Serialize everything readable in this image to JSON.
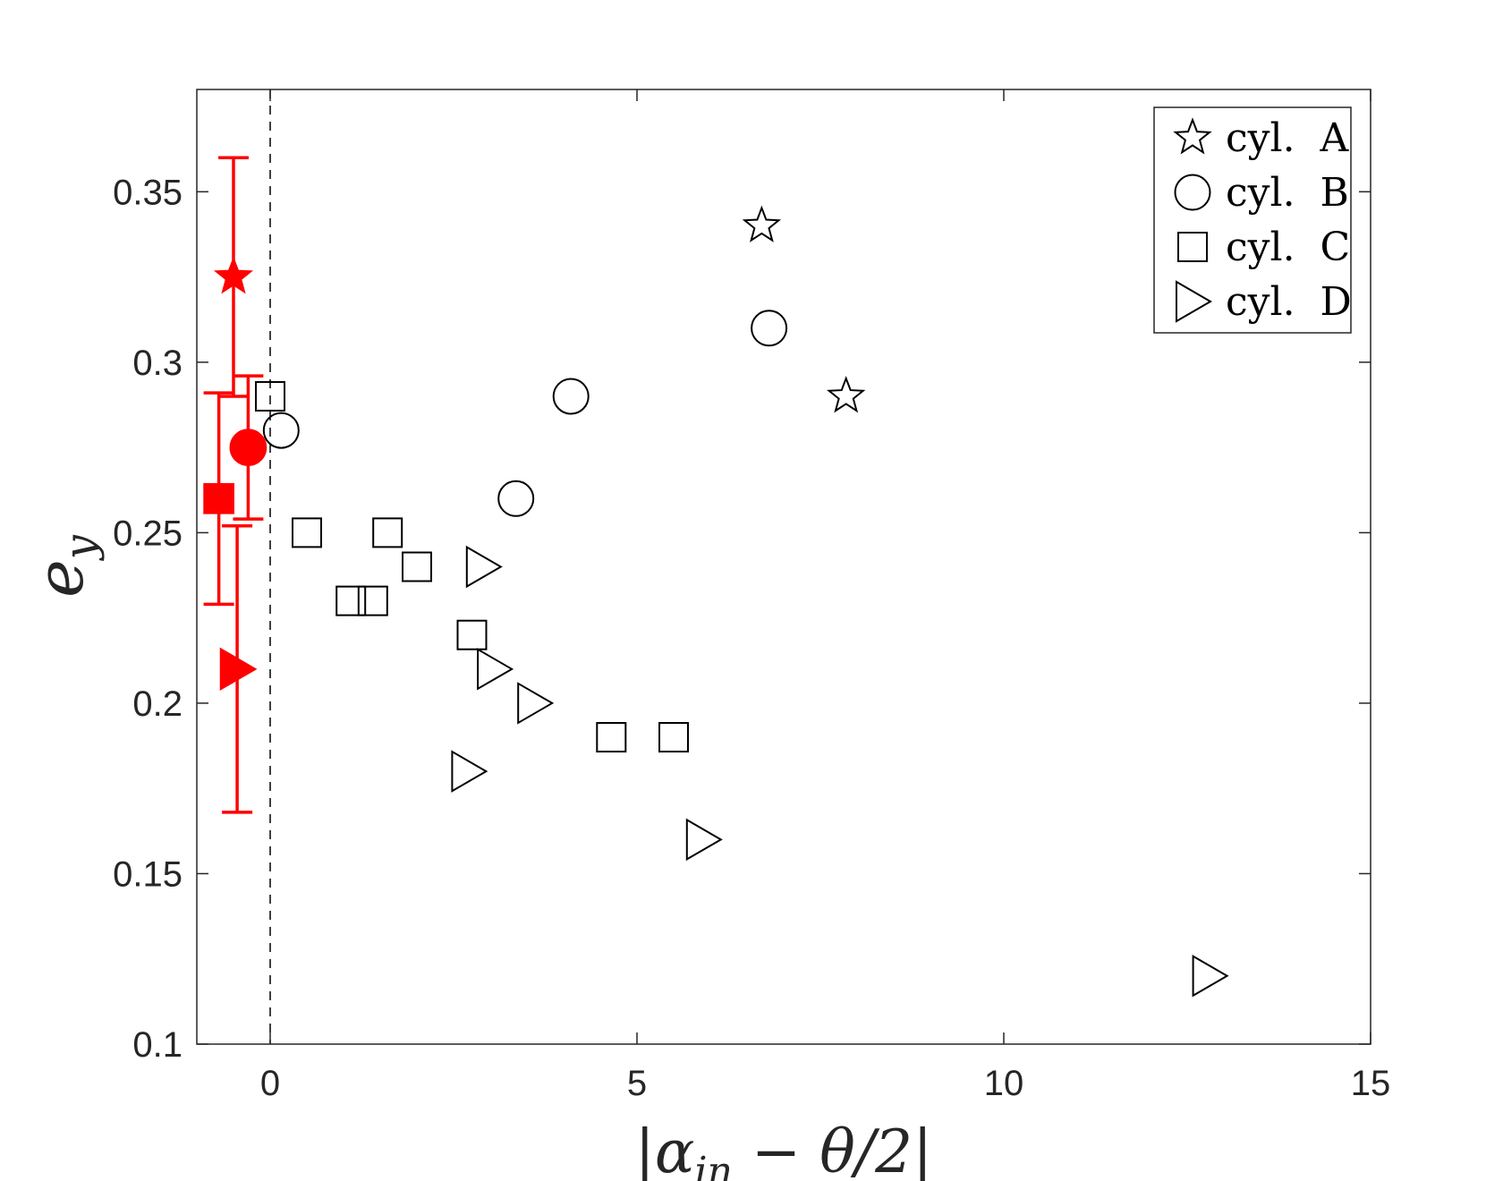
{
  "chart_data": {
    "type": "scatter",
    "title": "",
    "xlabel": "|α_in − θ/2|",
    "ylabel": "e_y",
    "xlabel_parts": {
      "open": "|",
      "sym": "α",
      "sub": "in",
      "rest": " − θ/2|"
    },
    "ylabel_parts": {
      "sym": "e",
      "sub": "y"
    },
    "xlim": [
      -1,
      15
    ],
    "ylim": [
      0.1,
      0.38
    ],
    "x_ticks": [
      0,
      5,
      10,
      15
    ],
    "x_tick_labels": [
      "0",
      "5",
      "10",
      "15"
    ],
    "y_ticks": [
      0.1,
      0.15,
      0.2,
      0.25,
      0.3,
      0.35
    ],
    "y_tick_labels": [
      "0.1",
      "0.15",
      "0.2",
      "0.25",
      "0.3",
      "0.35"
    ],
    "grid": false,
    "legend_position": "top-right",
    "reference_line": {
      "x": 0,
      "style": "dashed"
    },
    "series": [
      {
        "name": "cyl.  A",
        "marker": "star",
        "x": [
          6.7,
          7.85
        ],
        "y": [
          0.34,
          0.29
        ]
      },
      {
        "name": "cyl.  B",
        "marker": "circle",
        "x": [
          0.15,
          3.35,
          4.1,
          6.8
        ],
        "y": [
          0.28,
          0.26,
          0.29,
          0.31
        ]
      },
      {
        "name": "cyl.  C",
        "marker": "square",
        "x": [
          0.0,
          0.5,
          1.1,
          1.4,
          1.6,
          2.0,
          2.75,
          4.65,
          5.5
        ],
        "y": [
          0.29,
          0.25,
          0.23,
          0.23,
          0.25,
          0.24,
          0.22,
          0.19,
          0.19
        ]
      },
      {
        "name": "cyl.  D",
        "marker": "triangle-right",
        "x": [
          2.9,
          3.05,
          3.6,
          2.7,
          5.9,
          12.8
        ],
        "y": [
          0.24,
          0.21,
          0.2,
          0.18,
          0.16,
          0.12
        ]
      }
    ],
    "highlighted": {
      "color": "#ff0000",
      "points": [
        {
          "marker": "star",
          "x": -0.5,
          "y": 0.325,
          "err_low": 0.29,
          "err_high": 0.36
        },
        {
          "marker": "circle",
          "x": -0.3,
          "y": 0.275,
          "err_low": 0.254,
          "err_high": 0.296
        },
        {
          "marker": "square",
          "x": -0.7,
          "y": 0.26,
          "err_low": 0.229,
          "err_high": 0.291
        },
        {
          "marker": "triangle-right",
          "x": -0.45,
          "y": 0.21,
          "err_low": 0.168,
          "err_high": 0.252
        }
      ]
    }
  }
}
